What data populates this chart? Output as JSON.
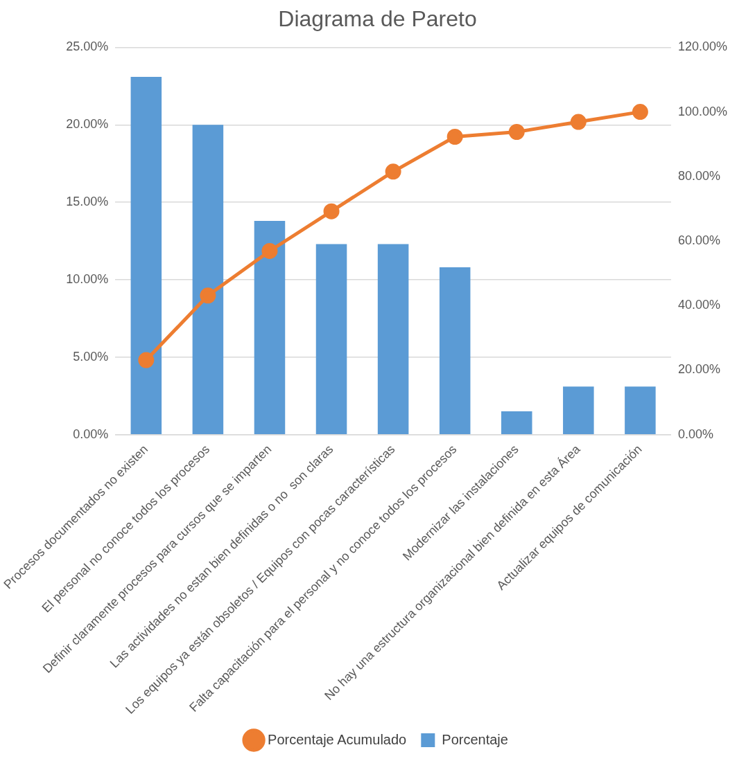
{
  "chart_data": {
    "type": "bar",
    "title": "Diagrama de Pareto",
    "categories": [
      "Procesos documentados no existen",
      "El personal no conoce todos los procesos",
      "Definir claramente procesos para cursos que se imparten",
      "Las actividades no estan bien definidas o no  son claras",
      "Los equipos ya están obsoletos / Equipos con pocas características",
      "Falta capacitación para el personal y no conoce todos los procesos",
      "Modernizar las instalaciones",
      "No hay una estructura organizacional bien definida en esta Área",
      "Actualizar equipos de comunicación"
    ],
    "series": [
      {
        "name": "Porcentaje",
        "color": "#5b9bd5",
        "values": [
          23.1,
          20.0,
          13.8,
          12.3,
          12.3,
          10.8,
          1.5,
          3.1,
          3.1
        ]
      },
      {
        "name": "Porcentaje Acumulado",
        "type": "line",
        "axis": "y2",
        "color": "#ed7d31",
        "marker": "circle",
        "values": [
          23.1,
          43.1,
          56.9,
          69.2,
          81.5,
          92.3,
          93.8,
          96.9,
          100
        ]
      }
    ],
    "ylim": [
      0,
      25
    ],
    "yticks": [
      {
        "value": 0,
        "label": "0.00%"
      },
      {
        "value": 5,
        "label": "5.00%"
      },
      {
        "value": 10,
        "label": "10.00%"
      },
      {
        "value": 15,
        "label": "15.00%"
      },
      {
        "value": 20,
        "label": "20.00%"
      },
      {
        "value": 25,
        "label": "25.00%"
      }
    ],
    "y2lim": [
      0,
      120
    ],
    "y2ticks": [
      {
        "value": 0,
        "label": "0.00%"
      },
      {
        "value": 20,
        "label": "20.00%"
      },
      {
        "value": 40,
        "label": "40.00%"
      },
      {
        "value": 60,
        "label": "60.00%"
      },
      {
        "value": 80,
        "label": "80.00%"
      },
      {
        "value": 100,
        "label": "100.00%"
      },
      {
        "value": 120,
        "label": "120.00%"
      }
    ],
    "grid": "y",
    "legend": "bottom"
  }
}
